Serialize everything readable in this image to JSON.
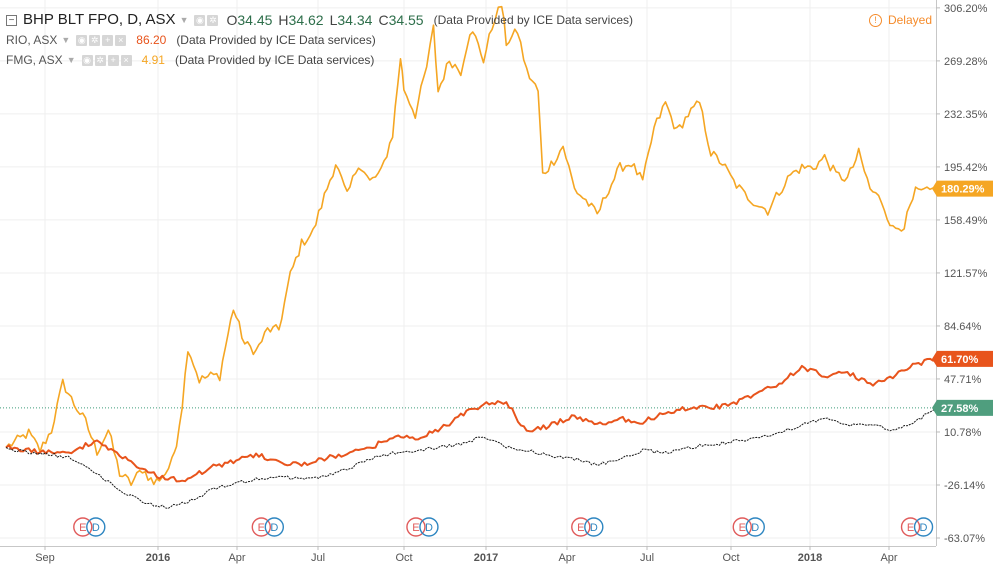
{
  "header": {
    "main_symbol": "BHP BLT FPO, D, ASX",
    "ohlc": [
      {
        "k": "O",
        "v": "34.45"
      },
      {
        "k": "H",
        "v": "34.62"
      },
      {
        "k": "L",
        "v": "34.34"
      },
      {
        "k": "C",
        "v": "34.55"
      }
    ],
    "main_provider": "(Data Provided by ICE Data services)",
    "delayed": "Delayed",
    "compare": [
      {
        "symbol": "RIO, ASX",
        "value": "86.20",
        "color": "#e8541c",
        "provider": "(Data Provided by ICE Data services)"
      },
      {
        "symbol": "FMG, ASX",
        "value": "4.91",
        "color": "#f5a623",
        "provider": "(Data Provided by ICE Data services)"
      }
    ]
  },
  "chart_data": {
    "type": "line",
    "x_ticks": [
      "Sep",
      "2016",
      "Apr",
      "Jul",
      "Oct",
      "2017",
      "Apr",
      "Jul",
      "Oct",
      "2018",
      "Apr"
    ],
    "y_ticks": [
      "306.20%",
      "269.28%",
      "232.35%",
      "195.42%",
      "158.49%",
      "121.57%",
      "84.64%",
      "47.71%",
      "10.78%",
      "-26.14%",
      "-63.07%"
    ],
    "ylim": [
      -63.07,
      306.2
    ],
    "baseline_pct": 27.58,
    "series": [
      {
        "name": "FMG, ASX",
        "color": "#f5a623",
        "last_label": "180.29%",
        "values": [
          [
            0,
            0
          ],
          [
            2,
            10
          ],
          [
            3,
            -2
          ],
          [
            4,
            12
          ],
          [
            5,
            45
          ],
          [
            6,
            30
          ],
          [
            7,
            18
          ],
          [
            8,
            -3
          ],
          [
            9,
            12
          ],
          [
            10,
            -18
          ],
          [
            11,
            -25
          ],
          [
            12,
            -15
          ],
          [
            13,
            -25
          ],
          [
            14,
            -18
          ],
          [
            14.6,
            -10
          ],
          [
            15,
            4
          ],
          [
            15.5,
            30
          ],
          [
            16,
            70
          ],
          [
            17,
            47
          ],
          [
            18,
            50
          ],
          [
            18.8,
            50
          ],
          [
            19.3,
            70
          ],
          [
            20,
            97
          ],
          [
            21,
            72
          ],
          [
            22,
            67
          ],
          [
            23,
            82
          ],
          [
            24,
            82
          ],
          [
            25,
            120
          ],
          [
            26,
            142
          ],
          [
            27,
            150
          ],
          [
            28,
            175
          ],
          [
            29,
            198
          ],
          [
            30,
            175
          ],
          [
            31,
            198
          ],
          [
            32,
            185
          ],
          [
            33,
            192
          ],
          [
            34,
            218
          ],
          [
            34.7,
            272
          ],
          [
            35,
            250
          ],
          [
            36,
            232
          ],
          [
            37,
            265
          ],
          [
            37.6,
            292
          ],
          [
            38,
            248
          ],
          [
            39,
            270
          ],
          [
            40,
            262
          ],
          [
            40.8,
            290
          ],
          [
            41.3,
            285
          ],
          [
            42,
            270
          ],
          [
            43,
            300
          ],
          [
            43.6,
            308
          ],
          [
            44,
            282
          ],
          [
            45,
            290
          ],
          [
            45.8,
            262
          ],
          [
            46.8,
            248
          ],
          [
            47.2,
            190
          ],
          [
            48.2,
            200
          ],
          [
            49,
            210
          ],
          [
            50,
            180
          ],
          [
            51,
            172
          ],
          [
            52,
            162
          ],
          [
            53,
            180
          ],
          [
            54,
            195
          ],
          [
            55,
            198
          ],
          [
            56,
            185
          ],
          [
            57,
            222
          ],
          [
            58,
            240
          ],
          [
            59,
            220
          ],
          [
            60,
            232
          ],
          [
            61,
            240
          ],
          [
            62,
            205
          ],
          [
            63,
            198
          ],
          [
            64,
            185
          ],
          [
            65,
            176
          ],
          [
            66,
            170
          ],
          [
            67,
            165
          ],
          [
            68,
            178
          ],
          [
            69,
            190
          ],
          [
            70,
            195
          ],
          [
            71,
            195
          ],
          [
            72,
            202
          ],
          [
            73,
            190
          ],
          [
            74,
            187
          ],
          [
            75,
            205
          ],
          [
            76,
            180
          ],
          [
            77,
            172
          ],
          [
            78,
            152
          ],
          [
            79,
            155
          ],
          [
            80,
            178
          ],
          [
            81,
            178
          ],
          [
            81.8,
            180.29
          ]
        ]
      },
      {
        "name": "RIO, ASX",
        "color": "#e8541c",
        "last_label": "61.70%",
        "values": [
          [
            0,
            0
          ],
          [
            2,
            -2
          ],
          [
            4,
            -4
          ],
          [
            6,
            -2
          ],
          [
            8,
            5
          ],
          [
            10,
            -6
          ],
          [
            12,
            -15
          ],
          [
            14,
            -22
          ],
          [
            16,
            -22
          ],
          [
            18,
            -14
          ],
          [
            20,
            -10
          ],
          [
            22,
            -5
          ],
          [
            24,
            -10
          ],
          [
            26,
            -12
          ],
          [
            28,
            -8
          ],
          [
            30,
            -4
          ],
          [
            32,
            -1
          ],
          [
            34,
            8
          ],
          [
            36,
            6
          ],
          [
            38,
            12
          ],
          [
            40,
            22
          ],
          [
            42,
            30
          ],
          [
            44,
            32
          ],
          [
            45.8,
            10
          ],
          [
            48,
            16
          ],
          [
            50,
            22
          ],
          [
            52,
            16
          ],
          [
            54,
            20
          ],
          [
            56,
            18
          ],
          [
            58,
            24
          ],
          [
            60,
            28
          ],
          [
            62,
            28
          ],
          [
            64,
            30
          ],
          [
            66,
            38
          ],
          [
            68,
            44
          ],
          [
            70,
            56
          ],
          [
            72,
            50
          ],
          [
            74,
            52
          ],
          [
            76,
            44
          ],
          [
            78,
            50
          ],
          [
            80,
            58
          ],
          [
            81.8,
            61.7
          ]
        ]
      },
      {
        "name": "BHP BLT FPO, D, ASX",
        "color": "#1a1a1a",
        "last_label": "27.58%",
        "values": [
          [
            0,
            0
          ],
          [
            2,
            -4
          ],
          [
            4,
            -5
          ],
          [
            6,
            -8
          ],
          [
            8,
            -18
          ],
          [
            10,
            -30
          ],
          [
            12,
            -38
          ],
          [
            14,
            -42
          ],
          [
            16,
            -38
          ],
          [
            18,
            -30
          ],
          [
            20,
            -25
          ],
          [
            22,
            -22
          ],
          [
            24,
            -20
          ],
          [
            26,
            -22
          ],
          [
            28,
            -20
          ],
          [
            30,
            -15
          ],
          [
            32,
            -8
          ],
          [
            34,
            -4
          ],
          [
            36,
            -2
          ],
          [
            38,
            0
          ],
          [
            40,
            2
          ],
          [
            42,
            8
          ],
          [
            44,
            0
          ],
          [
            46,
            -2
          ],
          [
            48,
            -6
          ],
          [
            50,
            -8
          ],
          [
            52,
            -12
          ],
          [
            54,
            -8
          ],
          [
            56,
            -2
          ],
          [
            58,
            -4
          ],
          [
            60,
            0
          ],
          [
            62,
            2
          ],
          [
            64,
            4
          ],
          [
            66,
            6
          ],
          [
            68,
            10
          ],
          [
            70,
            16
          ],
          [
            72,
            20
          ],
          [
            74,
            16
          ],
          [
            76,
            16
          ],
          [
            78,
            12
          ],
          [
            80,
            18
          ],
          [
            81.8,
            27.58
          ]
        ]
      }
    ],
    "events": [
      {
        "x": 3.5
      },
      {
        "x": 19.2
      },
      {
        "x": 32.8
      },
      {
        "x": 47.3
      },
      {
        "x": 61.5
      },
      {
        "x": 76.3
      }
    ],
    "event_labels": {
      "earnings": "E",
      "dividend": "D"
    }
  }
}
